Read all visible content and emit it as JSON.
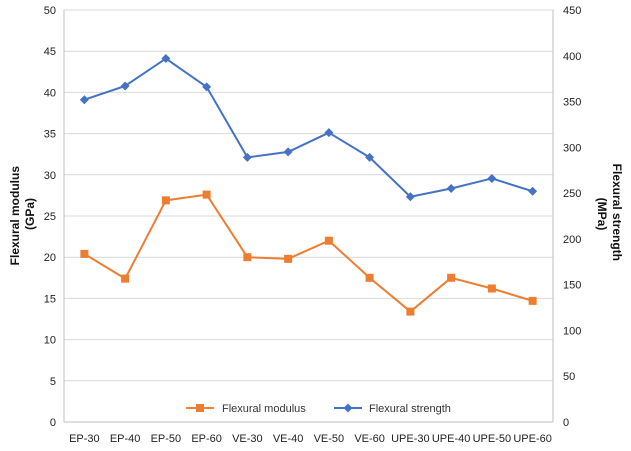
{
  "chart_data": {
    "type": "line",
    "categories": [
      "EP-30",
      "EP-40",
      "EP-50",
      "EP-60",
      "VE-30",
      "VE-40",
      "VE-50",
      "VE-60",
      "UPE-30",
      "UPE-40",
      "UPE-50",
      "UPE-60"
    ],
    "y_left": {
      "label_lines": [
        "Flexural modulus",
        "(GPa)"
      ],
      "min": 0,
      "max": 50,
      "ticks": [
        0,
        5,
        10,
        15,
        20,
        25,
        30,
        35,
        40,
        45,
        50
      ]
    },
    "y_right": {
      "label_lines": [
        "Flexural strength",
        "(MPa)"
      ],
      "min": 0,
      "max": 450,
      "ticks": [
        0,
        50,
        100,
        150,
        200,
        250,
        300,
        350,
        400,
        450
      ]
    },
    "series": [
      {
        "name": "Flexural modulus",
        "axis": "left",
        "color": "#ED7D31",
        "marker": "square",
        "values": [
          20.4,
          17.4,
          26.9,
          27.6,
          20.0,
          19.8,
          22.0,
          17.5,
          13.4,
          17.5,
          16.2,
          14.7
        ]
      },
      {
        "name": "Flexural strength",
        "axis": "right",
        "color": "#4472C4",
        "marker": "diamond",
        "values": [
          352,
          367,
          397,
          366,
          289,
          295,
          316,
          289,
          246,
          255,
          266,
          252
        ]
      }
    ],
    "grid": true,
    "legend_position": "bottom-inside"
  }
}
